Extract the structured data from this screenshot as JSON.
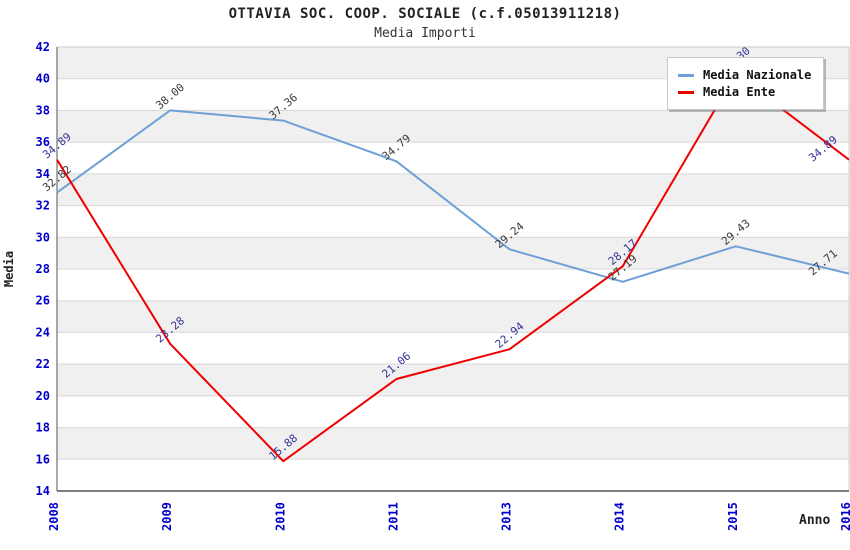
{
  "header": {
    "title": "OTTAVIA SOC. COOP. SOCIALE (c.f.05013911218)",
    "subtitle": "Media Importi"
  },
  "axes": {
    "y_label": "Media",
    "x_label": "Anno"
  },
  "legend": {
    "items": [
      {
        "label": "Media Nazionale",
        "color": "#6ea0d7"
      },
      {
        "label": "Media Ente",
        "color": "#ee0000"
      }
    ]
  },
  "colors": {
    "tick_label": "#0000cc",
    "band": "#f0f0f0",
    "grid": "#d8d8d8",
    "axis_dark": "#555555",
    "axis_light": "#cccccc",
    "label_nazionale": "#3a3a3a",
    "label_ente": "#333399"
  },
  "chart_data": {
    "type": "line",
    "title": "OTTAVIA SOC. COOP. SOCIALE (c.f.05013911218)",
    "subtitle": "Media Importi",
    "xlabel": "Anno",
    "ylabel": "Media",
    "x": [
      "2008",
      "2009",
      "2010",
      "2011",
      "2013",
      "2014",
      "2015",
      "2016"
    ],
    "ylim": [
      14,
      42
    ],
    "y_ticks": [
      14,
      16,
      18,
      20,
      22,
      24,
      26,
      28,
      30,
      32,
      34,
      36,
      38,
      40,
      42
    ],
    "grid": "horizontal-bands",
    "legend_position": "top-right-inside",
    "series": [
      {
        "name": "Media Nazionale",
        "color": "#6ea0d7",
        "label_color": "#3a3a3a",
        "values": [
          32.82,
          38.0,
          37.36,
          34.79,
          29.24,
          27.19,
          29.43,
          27.71
        ]
      },
      {
        "name": "Media Ente",
        "color": "#ee0000",
        "label_color": "#333399",
        "values": [
          34.89,
          23.28,
          15.88,
          21.06,
          22.94,
          28.17,
          40.3,
          34.89
        ],
        "hidden_label_indices": [
          6
        ]
      }
    ]
  }
}
